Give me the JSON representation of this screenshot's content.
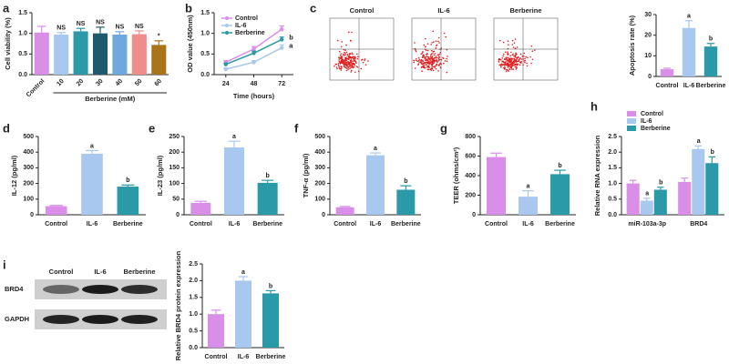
{
  "chart_data": [
    {
      "panel": "a",
      "type": "bar",
      "ylabel": "Cell viability (%)",
      "xlabel": "Berberine (mM)",
      "categories": [
        "Control",
        "10",
        "20",
        "30",
        "40",
        "50",
        "60"
      ],
      "values": [
        1.02,
        0.97,
        1.05,
        1.0,
        0.97,
        0.98,
        0.72
      ],
      "errors": [
        0.15,
        0.05,
        0.07,
        0.15,
        0.07,
        0.08,
        0.1
      ],
      "annotations": [
        null,
        "NS",
        "NS",
        "NS",
        "NS",
        "NS",
        "*"
      ],
      "colors": [
        "#d98ee8",
        "#a9c8f0",
        "#2a9aa8",
        "#1e5a6e",
        "#6fa8dc",
        "#f08c8c",
        "#a8741c"
      ],
      "ylim": [
        0,
        1.5
      ],
      "yticks": [
        {
          "value": 0,
          "label": "0.0"
        },
        0.5,
        {
          "value": 1,
          "label": "1.0"
        },
        1.5
      ],
      "rotated_labels": true
    },
    {
      "panel": "b",
      "type": "line",
      "ylabel": "OD value (450nm)",
      "xlabel": "Time (hours)",
      "x": [
        24,
        48,
        72
      ],
      "xlim": [
        14,
        82
      ],
      "xticks": [
        24,
        48,
        72
      ],
      "ylim": [
        0,
        1.5
      ],
      "yticks": [
        {
          "value": 0,
          "label": "0.0"
        },
        0.5,
        {
          "value": 1,
          "label": "1.0"
        },
        1.5
      ],
      "series": [
        {
          "name": "Control",
          "color": "#d98ee8",
          "values": [
            0.3,
            0.62,
            1.1
          ],
          "errors": [
            0.04,
            0.06,
            0.08
          ],
          "annotations": [
            null,
            null,
            null
          ]
        },
        {
          "name": "IL-6",
          "color": "#a9c8f0",
          "values": [
            0.13,
            0.3,
            0.65
          ],
          "errors": [
            0.03,
            0.04,
            0.07
          ],
          "annotations": [
            null,
            null,
            "a"
          ]
        },
        {
          "name": "Berberine",
          "color": "#2a9aa8",
          "values": [
            0.25,
            0.52,
            0.85
          ],
          "errors": [
            0.03,
            0.05,
            0.06
          ],
          "annotations": [
            null,
            null,
            "b"
          ]
        }
      ]
    },
    {
      "panel": "c",
      "type": "bar",
      "ylabel": "Apoptosis rate (%)",
      "categories": [
        "Control",
        "IL-6",
        "Berberine"
      ],
      "values": [
        3.5,
        23.5,
        14.5
      ],
      "errors": [
        0.5,
        3.5,
        1.5
      ],
      "annotations": [
        null,
        "a",
        "b"
      ],
      "colors": [
        "#d98ee8",
        "#a9c8f0",
        "#2a9aa8"
      ],
      "ylim": [
        0,
        30
      ],
      "yticks": [
        0,
        10,
        20,
        30
      ]
    },
    {
      "panel": "d",
      "type": "bar",
      "ylabel": "IL-12 (pg/ml)",
      "categories": [
        "Control",
        "IL-6",
        "Berberine"
      ],
      "values": [
        55,
        390,
        180
      ],
      "errors": [
        5,
        20,
        10
      ],
      "annotations": [
        null,
        "a",
        "b"
      ],
      "colors": [
        "#d98ee8",
        "#a9c8f0",
        "#2a9aa8"
      ],
      "ylim": [
        0,
        500
      ],
      "yticks": [
        0,
        100,
        200,
        300,
        400,
        500
      ]
    },
    {
      "panel": "e",
      "type": "bar",
      "ylabel": "IL-23 (pg/ml)",
      "categories": [
        "Control",
        "IL-6",
        "Berberine"
      ],
      "values": [
        38,
        215,
        102
      ],
      "errors": [
        5,
        20,
        8
      ],
      "annotations": [
        null,
        "a",
        "b"
      ],
      "colors": [
        "#d98ee8",
        "#a9c8f0",
        "#2a9aa8"
      ],
      "ylim": [
        0,
        250
      ],
      "yticks": [
        0,
        50,
        100,
        150,
        200,
        250
      ]
    },
    {
      "panel": "f",
      "type": "bar",
      "ylabel": "TNF-α (pg/ml)",
      "categories": [
        "Control",
        "IL-6",
        "Berberine"
      ],
      "values": [
        48,
        380,
        160
      ],
      "errors": [
        5,
        15,
        25
      ],
      "annotations": [
        null,
        "a",
        "b"
      ],
      "colors": [
        "#d98ee8",
        "#a9c8f0",
        "#2a9aa8"
      ],
      "ylim": [
        0,
        500
      ],
      "yticks": [
        0,
        100,
        200,
        300,
        400,
        500
      ]
    },
    {
      "panel": "g",
      "type": "bar",
      "ylabel": "TEER (ohms/cm²)",
      "categories": [
        "Control",
        "IL-6",
        "Berberine"
      ],
      "values": [
        590,
        185,
        415
      ],
      "errors": [
        40,
        60,
        40
      ],
      "annotations": [
        null,
        "a",
        "b"
      ],
      "colors": [
        "#d98ee8",
        "#a9c8f0",
        "#2a9aa8"
      ],
      "ylim": [
        0,
        800
      ],
      "yticks": [
        0,
        200,
        400,
        600,
        800
      ]
    },
    {
      "panel": "h",
      "type": "bar",
      "ylabel": "Relative RNA expression",
      "categories": [
        "miR-103a-3p",
        "BRD4"
      ],
      "series": [
        {
          "name": "Control",
          "color": "#d98ee8",
          "values": [
            1.0,
            1.05
          ],
          "errors": [
            0.1,
            0.12
          ],
          "annotations": [
            null,
            null
          ]
        },
        {
          "name": "IL-6",
          "color": "#a9c8f0",
          "values": [
            0.45,
            2.1
          ],
          "errors": [
            0.08,
            0.1
          ],
          "annotations": [
            "a",
            "a"
          ]
        },
        {
          "name": "Berberine",
          "color": "#2a9aa8",
          "values": [
            0.8,
            1.65
          ],
          "errors": [
            0.08,
            0.2
          ],
          "annotations": [
            "b",
            "b"
          ]
        }
      ],
      "ylim": [
        0,
        2.5
      ],
      "yticks": [
        {
          "value": 0,
          "label": "0.0"
        },
        0.5,
        {
          "value": 1,
          "label": "1.0"
        },
        1.5,
        {
          "value": 2,
          "label": "2.0"
        },
        2.5
      ]
    },
    {
      "panel": "i",
      "type": "bar",
      "ylabel": "Relative BRD4 protein expression",
      "categories": [
        "Control",
        "IL-6",
        "Berberine"
      ],
      "values": [
        1.0,
        2.0,
        1.62
      ],
      "errors": [
        0.12,
        0.12,
        0.08
      ],
      "annotations": [
        null,
        "a",
        "b"
      ],
      "colors": [
        "#d98ee8",
        "#a9c8f0",
        "#2a9aa8"
      ],
      "ylim": [
        0,
        2.5
      ],
      "yticks": [
        {
          "value": 0,
          "label": "0.0"
        },
        0.5,
        {
          "value": 1,
          "label": "1.0"
        },
        1.5,
        {
          "value": 2,
          "label": "2.0"
        },
        2.5
      ]
    }
  ],
  "flow_cytometry": {
    "titles": [
      "Control",
      "IL-6",
      "Berberine"
    ]
  },
  "western_blot": {
    "lanes": [
      "Control",
      "IL-6",
      "Berberine"
    ],
    "rows": [
      "BRD4",
      "GAPDH"
    ]
  }
}
